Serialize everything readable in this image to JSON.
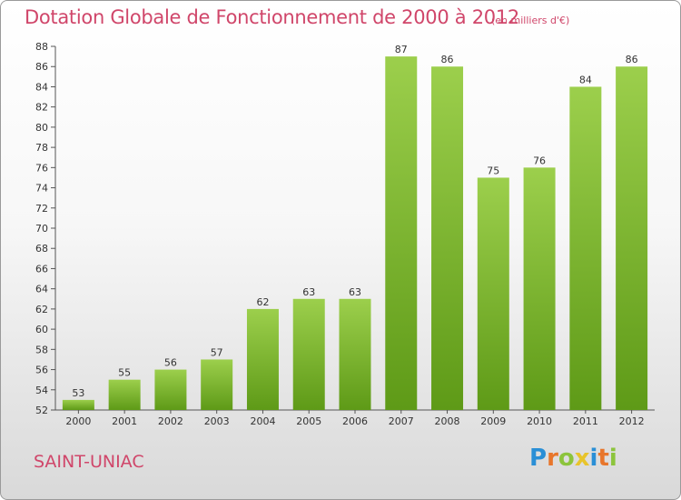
{
  "header": {
    "title": "Dotation Globale de Fonctionnement de 2000 à 2012",
    "subtitle": "(en milliers d'€)"
  },
  "footer": {
    "commune": "SAINT-UNIAC",
    "logo_letters": [
      "P",
      "r",
      "o",
      "x",
      "i",
      "t",
      "i"
    ],
    "logo_colors": [
      "#2a8fd6",
      "#e8762b",
      "#8cc43c",
      "#e8c42b",
      "#2a8fd6",
      "#e8762b",
      "#8cc43c"
    ]
  },
  "chart_data": {
    "type": "bar",
    "title": "Dotation Globale de Fonctionnement de 2000 à 2012",
    "subtitle": "(en milliers d'€)",
    "xlabel": "",
    "ylabel": "",
    "categories": [
      "2000",
      "2001",
      "2002",
      "2003",
      "2004",
      "2005",
      "2006",
      "2007",
      "2008",
      "2009",
      "2010",
      "2011",
      "2012"
    ],
    "values": [
      53,
      55,
      56,
      57,
      62,
      63,
      63,
      87,
      86,
      75,
      76,
      84,
      86
    ],
    "ylim": [
      52,
      88
    ],
    "yticks": [
      52,
      54,
      56,
      58,
      60,
      62,
      64,
      66,
      68,
      70,
      72,
      74,
      76,
      78,
      80,
      82,
      84,
      86,
      88
    ],
    "grid": false,
    "bar_color_top": "#9ccf4c",
    "bar_color_bottom": "#5e9a17"
  }
}
